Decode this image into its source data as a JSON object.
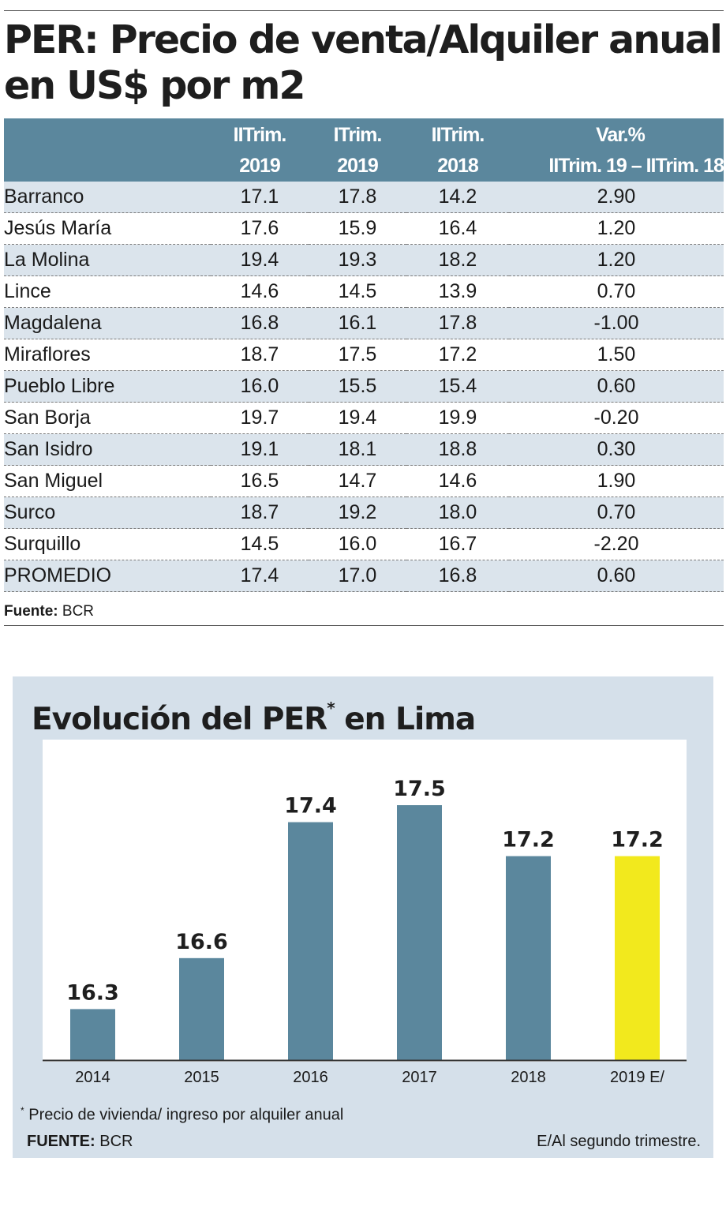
{
  "title_line1": "PER: Precio de venta/Alquiler anual",
  "title_line2": "en US$ por m2",
  "table": {
    "headers": [
      {
        "line1": "",
        "line2": ""
      },
      {
        "line1": "IITrim.",
        "line2": "2019"
      },
      {
        "line1": "ITrim.",
        "line2": "2019"
      },
      {
        "line1": "IITrim.",
        "line2": "2018"
      },
      {
        "line1": "Var.%",
        "line2": "IITrim. 19 –  IITrim. 18"
      }
    ],
    "rows": [
      {
        "name": "Barranco",
        "a": "17.1",
        "b": "17.8",
        "c": "14.2",
        "d": "2.90"
      },
      {
        "name": "Jesús María",
        "a": "17.6",
        "b": "15.9",
        "c": "16.4",
        "d": "1.20"
      },
      {
        "name": "La Molina",
        "a": "19.4",
        "b": "19.3",
        "c": "18.2",
        "d": "1.20"
      },
      {
        "name": "Lince",
        "a": "14.6",
        "b": "14.5",
        "c": "13.9",
        "d": "0.70"
      },
      {
        "name": "Magdalena",
        "a": "16.8",
        "b": "16.1",
        "c": "17.8",
        "d": "-1.00"
      },
      {
        "name": "Miraflores",
        "a": "18.7",
        "b": "17.5",
        "c": "17.2",
        "d": "1.50"
      },
      {
        "name": "Pueblo Libre",
        "a": "16.0",
        "b": "15.5",
        "c": "15.4",
        "d": "0.60"
      },
      {
        "name": "San Borja",
        "a": "19.7",
        "b": "19.4",
        "c": "19.9",
        "d": "-0.20"
      },
      {
        "name": "San Isidro",
        "a": "19.1",
        "b": "18.1",
        "c": "18.8",
        "d": "0.30"
      },
      {
        "name": "San Miguel",
        "a": "16.5",
        "b": "14.7",
        "c": "14.6",
        "d": "1.90"
      },
      {
        "name": "Surco",
        "a": "18.7",
        "b": "19.2",
        "c": "18.0",
        "d": "0.70"
      },
      {
        "name": "Surquillo",
        "a": "14.5",
        "b": "16.0",
        "c": "16.7",
        "d": "-2.20"
      },
      {
        "name": "PROMEDIO",
        "a": "17.4",
        "b": "17.0",
        "c": "16.8",
        "d": "0.60"
      }
    ],
    "source_label": "Fuente:",
    "source_value": "BCR"
  },
  "chart_data": {
    "type": "bar",
    "title": "Evolución del PER",
    "title_mark": "*",
    "categories": [
      "2014",
      "2015",
      "2016",
      "2017",
      "2018",
      "2019 E/"
    ],
    "values": [
      16.3,
      16.6,
      17.4,
      17.5,
      17.2,
      17.2
    ],
    "value_labels": [
      "16.3",
      "16.6",
      "17.4",
      "17.5",
      "17.2",
      "17.2"
    ],
    "ylim": [
      16.0,
      17.7
    ],
    "bar_colors": [
      "#5b879d",
      "#5b879d",
      "#5b879d",
      "#5b879d",
      "#5b879d",
      "#f2e91d"
    ],
    "grid": false
  },
  "chart_title_suffix": " en Lima",
  "note_mark": "*",
  "note": " Precio de vivienda/ ingreso por alquiler anual",
  "chart_source_label": "FUENTE:",
  "chart_source_value": " BCR",
  "footnote_right": "E/Al segundo trimestre.",
  "colors": {
    "header_bg": "#5b879d",
    "row_shade": "#dbe4ec",
    "panel_bg": "#d5e0ea",
    "highlight": "#f2e91d"
  }
}
